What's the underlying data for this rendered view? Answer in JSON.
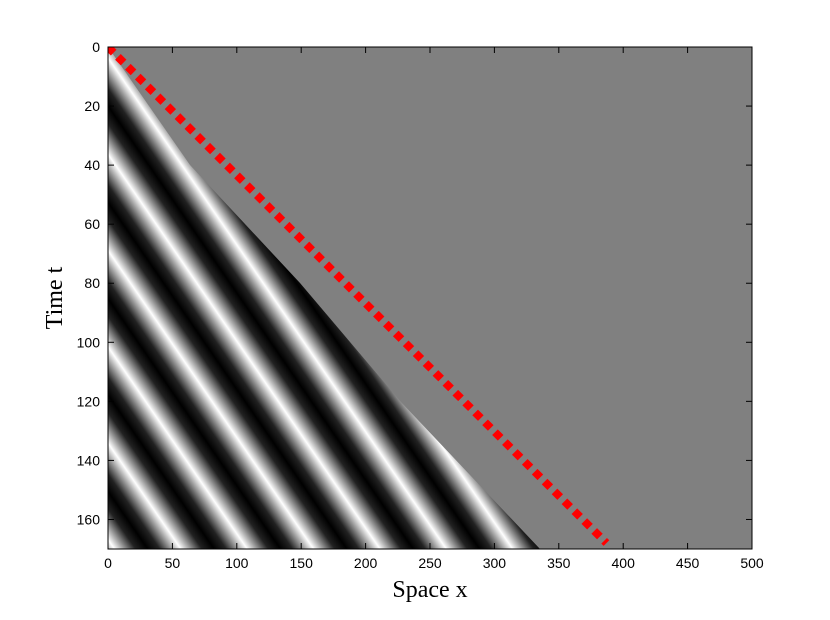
{
  "chart_data": {
    "type": "line",
    "xlabel": "Space x",
    "ylabel": "Time t",
    "x": [
      0,
      387
    ],
    "values": [
      0,
      168
    ],
    "color": "#ff0000",
    "xlim": [
      0,
      500
    ],
    "ylim": [
      0,
      170
    ],
    "y_inverted": true,
    "xticks": [
      0,
      50,
      100,
      150,
      200,
      250,
      300,
      350,
      400,
      450,
      500
    ],
    "yticks": [
      0,
      20,
      40,
      60,
      80,
      100,
      120,
      140,
      160
    ],
    "background": "#808080"
  }
}
